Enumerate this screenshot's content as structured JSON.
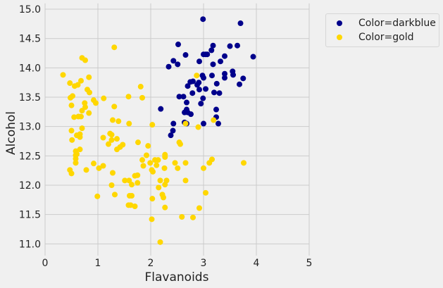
{
  "chart_data": {
    "type": "scatter",
    "title": "",
    "xlabel": "Flavanoids",
    "ylabel": "Alcohol",
    "xlim": [
      0,
      5
    ],
    "ylim": [
      10.8,
      15.1
    ],
    "xticks": [
      0,
      1,
      2,
      3,
      4,
      5
    ],
    "yticks": [
      11.0,
      11.5,
      12.0,
      12.5,
      13.0,
      13.5,
      14.0,
      14.5,
      15.0
    ],
    "xtick_labels": [
      "0",
      "1",
      "2",
      "3",
      "4",
      "5"
    ],
    "ytick_labels": [
      "11.0",
      "11.5",
      "12.0",
      "12.5",
      "13.0",
      "13.5",
      "14.0",
      "14.5",
      "15.0"
    ],
    "grid": true,
    "legend_placement": "outside-top-right",
    "series": [
      {
        "name": "Color=darkblue",
        "color": "#00008b",
        "points": [
          [
            2.99,
            14.83
          ],
          [
            3.7,
            14.76
          ],
          [
            2.52,
            14.4
          ],
          [
            3.18,
            14.38
          ],
          [
            3.5,
            14.37
          ],
          [
            3.64,
            14.38
          ],
          [
            3.15,
            14.3
          ],
          [
            2.66,
            14.22
          ],
          [
            3.0,
            14.23
          ],
          [
            3.04,
            14.23
          ],
          [
            3.07,
            14.23
          ],
          [
            3.4,
            14.2
          ],
          [
            3.94,
            14.19
          ],
          [
            2.43,
            14.12
          ],
          [
            2.51,
            14.06
          ],
          [
            2.92,
            14.11
          ],
          [
            3.18,
            14.06
          ],
          [
            3.32,
            14.11
          ],
          [
            2.34,
            14.02
          ],
          [
            2.98,
            13.87
          ],
          [
            3.0,
            13.83
          ],
          [
            3.16,
            13.87
          ],
          [
            3.4,
            13.9
          ],
          [
            3.55,
            13.94
          ],
          [
            3.56,
            13.88
          ],
          [
            3.4,
            13.83
          ],
          [
            3.75,
            13.82
          ],
          [
            3.68,
            13.72
          ],
          [
            3.25,
            13.73
          ],
          [
            2.75,
            13.76
          ],
          [
            2.8,
            13.77
          ],
          [
            2.7,
            13.69
          ],
          [
            2.88,
            13.71
          ],
          [
            2.91,
            13.75
          ],
          [
            2.92,
            13.63
          ],
          [
            3.04,
            13.64
          ],
          [
            2.79,
            13.57
          ],
          [
            3.2,
            13.58
          ],
          [
            3.3,
            13.57
          ],
          [
            2.54,
            13.51
          ],
          [
            2.62,
            13.51
          ],
          [
            2.99,
            13.48
          ],
          [
            2.68,
            13.41
          ],
          [
            2.95,
            13.39
          ],
          [
            2.19,
            13.3
          ],
          [
            3.24,
            13.29
          ],
          [
            3.24,
            13.16
          ],
          [
            2.68,
            13.29
          ],
          [
            2.64,
            13.24
          ],
          [
            2.7,
            13.24
          ],
          [
            2.76,
            13.21
          ],
          [
            2.43,
            13.05
          ],
          [
            2.64,
            13.07
          ],
          [
            2.68,
            13.05
          ],
          [
            3.0,
            13.05
          ],
          [
            3.28,
            13.05
          ],
          [
            2.42,
            12.93
          ],
          [
            2.38,
            12.85
          ]
        ]
      },
      {
        "name": "Color=gold",
        "color": "#ffd700",
        "points": [
          [
            2.87,
            13.87
          ],
          [
            1.81,
            13.68
          ],
          [
            1.84,
            13.49
          ],
          [
            2.03,
            13.03
          ],
          [
            2.66,
            13.05
          ],
          [
            2.9,
            12.99
          ],
          [
            3.19,
            13.11
          ],
          [
            1.31,
            14.35
          ],
          [
            0.7,
            14.17
          ],
          [
            0.76,
            14.13
          ],
          [
            0.34,
            13.88
          ],
          [
            0.83,
            13.84
          ],
          [
            0.47,
            13.74
          ],
          [
            0.68,
            13.78
          ],
          [
            0.56,
            13.69
          ],
          [
            0.62,
            13.71
          ],
          [
            0.8,
            13.63
          ],
          [
            0.84,
            13.58
          ],
          [
            0.48,
            13.49
          ],
          [
            0.52,
            13.52
          ],
          [
            0.92,
            13.45
          ],
          [
            0.96,
            13.4
          ],
          [
            1.11,
            13.48
          ],
          [
            1.58,
            13.51
          ],
          [
            0.75,
            13.4
          ],
          [
            0.5,
            13.36
          ],
          [
            0.76,
            13.33
          ],
          [
            1.31,
            13.34
          ],
          [
            0.7,
            13.27
          ],
          [
            0.83,
            13.23
          ],
          [
            0.55,
            13.16
          ],
          [
            0.63,
            13.17
          ],
          [
            0.68,
            13.17
          ],
          [
            1.28,
            13.11
          ],
          [
            1.39,
            13.09
          ],
          [
            1.59,
            13.05
          ],
          [
            0.7,
            12.97
          ],
          [
            0.5,
            12.93
          ],
          [
            1.23,
            12.88
          ],
          [
            1.26,
            12.86
          ],
          [
            0.51,
            12.77
          ],
          [
            0.6,
            12.85
          ],
          [
            0.66,
            12.87
          ],
          [
            0.66,
            12.82
          ],
          [
            1.1,
            12.81
          ],
          [
            1.26,
            12.77
          ],
          [
            1.36,
            12.79
          ],
          [
            1.76,
            12.73
          ],
          [
            1.2,
            12.7
          ],
          [
            1.47,
            12.69
          ],
          [
            1.42,
            12.65
          ],
          [
            1.36,
            12.61
          ],
          [
            1.95,
            12.67
          ],
          [
            0.66,
            12.61
          ],
          [
            0.58,
            12.58
          ],
          [
            0.6,
            12.53
          ],
          [
            0.58,
            12.51
          ],
          [
            0.58,
            12.45
          ],
          [
            0.58,
            12.38
          ],
          [
            1.92,
            12.51
          ],
          [
            1.84,
            12.43
          ],
          [
            1.86,
            12.33
          ],
          [
            2.27,
            12.52
          ],
          [
            2.27,
            12.48
          ],
          [
            2.08,
            12.43
          ],
          [
            2.14,
            12.43
          ],
          [
            2.11,
            12.34
          ],
          [
            1.99,
            12.38
          ],
          [
            2.26,
            12.29
          ],
          [
            2.02,
            12.26
          ],
          [
            2.04,
            12.23
          ],
          [
            0.92,
            12.37
          ],
          [
            1.1,
            12.33
          ],
          [
            1.02,
            12.29
          ],
          [
            0.47,
            12.26
          ],
          [
            0.5,
            12.2
          ],
          [
            0.78,
            12.26
          ],
          [
            1.28,
            12.21
          ],
          [
            2.54,
            12.73
          ],
          [
            2.56,
            12.7
          ],
          [
            2.46,
            12.38
          ],
          [
            2.51,
            12.29
          ],
          [
            2.66,
            12.38
          ],
          [
            3.0,
            12.29
          ],
          [
            3.11,
            12.38
          ],
          [
            3.16,
            12.44
          ],
          [
            3.76,
            12.38
          ],
          [
            2.66,
            12.08
          ],
          [
            3.04,
            11.87
          ],
          [
            2.92,
            11.61
          ],
          [
            2.8,
            11.45
          ],
          [
            2.59,
            11.46
          ],
          [
            2.27,
            11.62
          ],
          [
            2.18,
            11.03
          ],
          [
            2.02,
            11.42
          ],
          [
            2.03,
            11.77
          ],
          [
            2.22,
            11.84
          ],
          [
            2.24,
            11.79
          ],
          [
            2.15,
            11.96
          ],
          [
            2.18,
            12.08
          ],
          [
            2.3,
            12.08
          ],
          [
            2.27,
            12.01
          ],
          [
            0.99,
            11.81
          ],
          [
            1.26,
            12.0
          ],
          [
            1.32,
            11.84
          ],
          [
            1.51,
            12.08
          ],
          [
            1.59,
            12.08
          ],
          [
            1.7,
            12.16
          ],
          [
            1.75,
            12.17
          ],
          [
            1.64,
            12.01
          ],
          [
            1.75,
            12.04
          ],
          [
            1.6,
            11.82
          ],
          [
            1.64,
            11.82
          ],
          [
            1.58,
            11.66
          ],
          [
            1.62,
            11.66
          ],
          [
            1.7,
            11.64
          ]
        ]
      }
    ]
  }
}
